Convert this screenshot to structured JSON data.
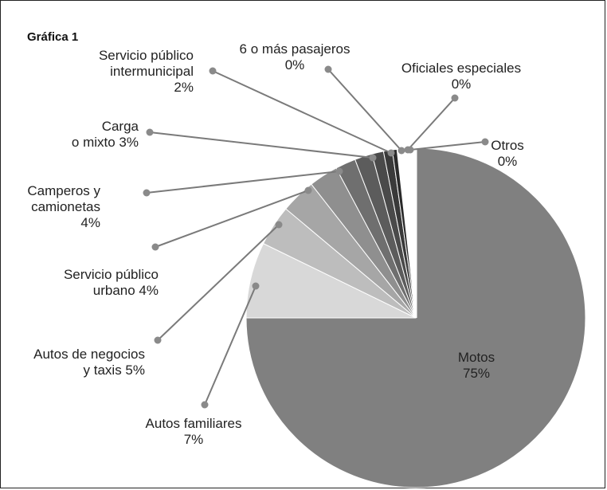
{
  "chart_data": {
    "type": "pie",
    "title": "Gráfica 1",
    "unit": "%",
    "slices": [
      {
        "name": "Motos",
        "value": 75,
        "color": "#808080",
        "label_lines": [
          "Motos",
          "75%"
        ]
      },
      {
        "name": "Autos familiares",
        "value": 7,
        "color": "#d8d8d8",
        "label_lines": [
          "Autos familiares",
          "7%"
        ]
      },
      {
        "name": "Autos de negocios y taxis",
        "value": 5,
        "color": "#bdbdbd",
        "label_lines": [
          "Autos de negocios",
          "y taxis 5%"
        ]
      },
      {
        "name": "Servicio público urbano",
        "value": 4,
        "color": "#a6a6a6",
        "label_lines": [
          "Servicio público",
          "urbano 4%"
        ]
      },
      {
        "name": "Camperos y camionetas",
        "value": 4,
        "color": "#8f8f8f",
        "label_lines": [
          "Camperos y",
          "camionetas",
          "4%"
        ]
      },
      {
        "name": "Carga o mixto",
        "value": 3,
        "color": "#6f6f6f",
        "label_lines": [
          "Carga",
          "o mixto 3%"
        ]
      },
      {
        "name": "Servicio público intermunicipal",
        "value": 2,
        "color": "#5c5c5c",
        "label_lines": [
          "Servicio público",
          "intermunicipal",
          "2%"
        ]
      },
      {
        "name": "6 o más pasajeros",
        "value": 0,
        "color": "#4a4a4a",
        "label_lines": [
          "6 o más pasajeros",
          "0%"
        ]
      },
      {
        "name": "Oficiales especiales",
        "value": 0,
        "color": "#3a3a3a",
        "label_lines": [
          "Oficiales especiales",
          "0%"
        ]
      },
      {
        "name": "Otros",
        "value": 0,
        "color": "#2a2a2a",
        "label_lines": [
          "Otros",
          "0%"
        ]
      }
    ],
    "colors": {
      "leader": "#7a7a7a",
      "dot": "#8a8a8a",
      "separator": "#ffffff"
    }
  }
}
